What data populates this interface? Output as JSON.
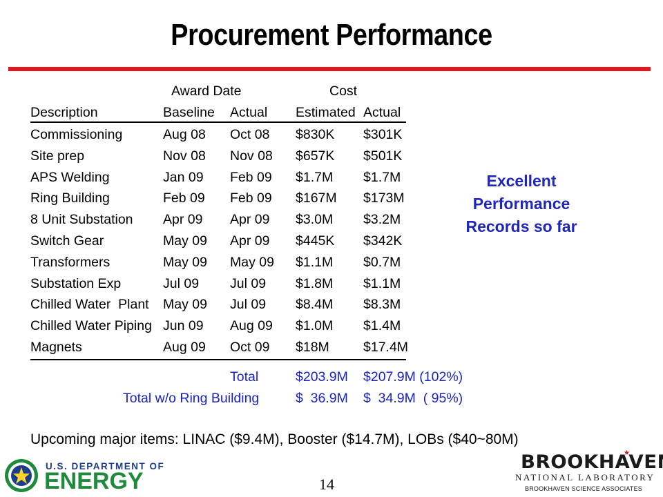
{
  "title": "Procurement Performance",
  "table": {
    "group_headers": {
      "award_date": "Award Date",
      "cost": "Cost"
    },
    "columns": [
      "Description",
      "Baseline",
      "Actual",
      "Estimated",
      "Actual"
    ],
    "rows": [
      [
        "Commissioning",
        "Aug 08",
        "Oct 08",
        "$830K",
        "$301K"
      ],
      [
        "Site prep",
        "Nov 08",
        "Nov 08",
        "$657K",
        "$501K"
      ],
      [
        "APS Welding",
        "Jan 09",
        "Feb 09",
        "$1.7M",
        "$1.7M"
      ],
      [
        "Ring Building",
        "Feb 09",
        "Feb 09",
        "$167M",
        "$173M"
      ],
      [
        "8 Unit Substation",
        "Apr 09",
        "Apr 09",
        "$3.0M",
        "$3.2M"
      ],
      [
        "Switch Gear",
        "May 09",
        "Apr 09",
        "$445K",
        "$342K"
      ],
      [
        "Transformers",
        "May 09",
        "May 09",
        "$1.1M",
        "$0.7M"
      ],
      [
        "Substation Exp",
        "Jul 09",
        "Jul 09",
        "$1.8M",
        "$1.1M"
      ],
      [
        "Chilled Water  Plant",
        "May 09",
        "Jul 09",
        "$8.4M",
        "$8.3M"
      ],
      [
        "Chilled Water Piping",
        "Jun 09",
        "Aug 09",
        "$1.0M",
        "$1.4M"
      ],
      [
        "Magnets",
        "Aug 09",
        "Oct 09",
        "$18M",
        "$17.4M"
      ]
    ],
    "totals": [
      {
        "label": "Total",
        "estimated": "$203.9M",
        "actual": "$207.9M (102%)"
      },
      {
        "label": "Total w/o Ring Building",
        "estimated": "$  36.9M",
        "actual": "$  34.9M  ( 95%)"
      }
    ]
  },
  "callout": [
    "Excellent",
    "Performance",
    "Records so far"
  ],
  "upcoming": "Upcoming major items: LINAC ($9.4M), Booster ($14.7M), LOBs ($40~80M)",
  "page_number": "14",
  "footer": {
    "doe_line1": "U.S. DEPARTMENT OF",
    "doe_line2": "ENERGY",
    "bnl_name": "BROOKHAVEN",
    "bnl_lab": "NATIONAL LABORATORY",
    "bnl_assoc": "BROOKHAVEN SCIENCE ASSOCIATES"
  },
  "colors": {
    "title_rule": "#e8141b",
    "blue_text": "#1a22c8",
    "doe_green": "#1f8a3c",
    "doe_blue": "#1b3c8a"
  }
}
